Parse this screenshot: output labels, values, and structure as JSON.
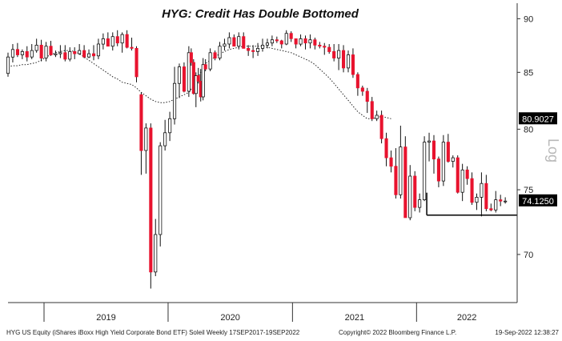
{
  "chart_data": {
    "type": "candlestick",
    "title": "HYG: Credit Has Double Bottomed",
    "scale": "log",
    "scale_label": "Log",
    "y_ticks": [
      70,
      75,
      80,
      85,
      90
    ],
    "ylim": [
      66.5,
      91.5
    ],
    "x_labels": [
      "2019",
      "2020",
      "2021",
      "2022"
    ],
    "x_range": [
      "2018-09-17",
      "2022-10-24"
    ],
    "year_dividers": [
      "2019-01-01",
      "2020-01-01",
      "2021-01-01",
      "2022-01-01"
    ],
    "last_price_label": "74.1250",
    "moving_average_label": "80.9027",
    "colors": {
      "up": "#ffffff",
      "down": "#e8132e",
      "wick": "#111111",
      "ma": "#222222"
    },
    "series": {
      "dates": [
        "2018-09-17",
        "2018-10-01",
        "2018-10-15",
        "2018-10-29",
        "2018-11-12",
        "2018-11-26",
        "2018-12-10",
        "2018-12-24",
        "2019-01-07",
        "2019-01-21",
        "2019-02-04",
        "2019-02-18",
        "2019-03-04",
        "2019-03-18",
        "2019-04-01",
        "2019-04-15",
        "2019-04-29",
        "2019-05-13",
        "2019-05-27",
        "2019-06-10",
        "2019-06-24",
        "2019-07-08",
        "2019-07-22",
        "2019-08-05",
        "2019-08-19",
        "2019-09-02",
        "2019-09-16",
        "2019-09-30",
        "2019-10-14",
        "2019-10-28",
        "2019-11-11",
        "2019-11-25",
        "2019-12-09",
        "2019-12-23",
        "2020-01-06",
        "2020-01-20",
        "2020-02-03",
        "2020-02-17",
        "2020-03-02",
        "2020-03-09",
        "2020-03-16",
        "2020-03-23",
        "2020-03-30",
        "2020-04-06",
        "2020-04-13",
        "2020-04-20",
        "2020-05-04",
        "2020-05-18",
        "2020-06-01",
        "2020-06-15",
        "2020-06-29",
        "2020-07-13",
        "2020-07-27",
        "2020-08-10",
        "2020-08-24",
        "2020-09-07",
        "2020-09-21",
        "2020-10-05",
        "2020-10-19",
        "2020-11-02",
        "2020-11-16",
        "2020-11-30",
        "2020-12-14",
        "2020-12-28",
        "2021-01-11",
        "2021-01-25",
        "2021-02-08",
        "2021-02-22",
        "2021-03-08",
        "2021-03-22",
        "2021-04-05",
        "2021-04-19",
        "2021-05-03",
        "2021-05-17",
        "2021-05-31",
        "2021-06-14",
        "2021-06-28",
        "2021-07-12",
        "2021-07-26",
        "2021-08-09",
        "2021-08-23",
        "2021-09-06",
        "2021-09-20",
        "2021-10-04",
        "2021-10-18",
        "2021-11-01",
        "2021-11-15",
        "2021-11-29",
        "2021-12-13",
        "2021-12-27",
        "2022-01-10",
        "2022-01-24",
        "2022-02-07",
        "2022-02-21",
        "2022-03-07",
        "2022-03-21",
        "2022-04-04",
        "2022-04-18",
        "2022-05-02",
        "2022-05-16",
        "2022-05-30",
        "2022-06-13",
        "2022-06-27",
        "2022-07-11",
        "2022-07-25",
        "2022-08-08",
        "2022-08-22",
        "2022-09-05",
        "2022-09-19"
      ],
      "open": [
        84.9,
        86.4,
        87.1,
        86.6,
        86.9,
        86.4,
        87.0,
        87.5,
        86.3,
        87.4,
        86.6,
        86.7,
        86.8,
        86.2,
        86.9,
        86.7,
        87.0,
        86.4,
        86.7,
        86.5,
        87.6,
        88.1,
        87.4,
        88.3,
        87.7,
        88.5,
        87.3,
        87.2,
        83.0,
        78.2,
        80.1,
        68.7,
        71.5,
        78.6,
        79.7,
        80.9,
        84.0,
        85.5,
        83.3,
        86.8,
        85.9,
        83.1,
        84.7,
        84.2,
        82.8,
        85.7,
        85.3,
        86.8,
        86.3,
        87.4,
        87.6,
        88.2,
        87.4,
        88.3,
        87.2,
        87.0,
        86.9,
        87.2,
        87.5,
        87.7,
        88.0,
        87.9,
        87.6,
        88.6,
        88.1,
        87.6,
        88.1,
        87.7,
        88.0,
        87.5,
        87.4,
        87.3,
        86.9,
        86.3,
        87.0,
        85.4,
        86.6,
        84.8,
        83.6,
        83.3,
        82.4,
        80.9,
        81.2,
        79.2,
        77.6,
        76.9,
        74.6,
        78.5,
        72.8,
        76.1,
        73.6,
        74.2,
        78.9,
        79.0,
        77.5,
        75.7,
        78.9,
        77.3,
        77.6,
        74.8,
        76.6,
        75.9,
        74.0,
        74.4,
        75.5,
        73.5,
        73.4,
        74.2,
        74.1
      ],
      "high": [
        86.8,
        87.6,
        87.7,
        87.1,
        87.4,
        87.6,
        88.1,
        88.0,
        87.8,
        87.9,
        87.0,
        87.5,
        87.5,
        87.3,
        87.3,
        87.6,
        87.5,
        87.1,
        87.5,
        88.1,
        88.6,
        88.7,
        88.7,
        88.9,
        88.7,
        88.9,
        88.2,
        87.4,
        83.2,
        80.5,
        80.5,
        72.7,
        78.9,
        80.8,
        81.5,
        85.5,
        85.8,
        85.9,
        87.4,
        87.2,
        86.2,
        85.0,
        85.4,
        85.3,
        86.3,
        86.2,
        87.2,
        87.0,
        87.8,
        88.1,
        88.7,
        88.5,
        88.7,
        88.7,
        87.5,
        87.5,
        87.7,
        88.1,
        88.1,
        88.4,
        88.3,
        88.0,
        88.9,
        88.8,
        88.1,
        88.5,
        88.4,
        88.5,
        88.2,
        87.8,
        87.7,
        87.6,
        87.6,
        87.6,
        87.5,
        87.0,
        87.2,
        85.0,
        83.8,
        83.6,
        82.8,
        81.6,
        81.6,
        79.7,
        78.2,
        78.4,
        80.3,
        79.4,
        77.0,
        76.5,
        74.7,
        79.4,
        79.7,
        79.5,
        77.7,
        79.5,
        79.6,
        77.8,
        77.8,
        77.1,
        76.9,
        76.4,
        74.7,
        76.4,
        76.2,
        73.9,
        74.9,
        74.6,
        74.4
      ],
      "low": [
        84.6,
        85.9,
        86.4,
        86.2,
        86.0,
        86.2,
        86.8,
        86.0,
        86.0,
        86.5,
        86.4,
        86.3,
        86.0,
        86.0,
        86.2,
        86.6,
        86.3,
        86.3,
        86.1,
        86.2,
        87.1,
        87.4,
        87.0,
        87.4,
        86.8,
        87.2,
        87.0,
        84.1,
        76.2,
        76.3,
        67.5,
        68.4,
        70.6,
        78.2,
        79.0,
        80.4,
        82.7,
        83.2,
        82.8,
        85.6,
        83.0,
        81.9,
        84.0,
        82.4,
        82.5,
        85.1,
        85.1,
        86.1,
        86.1,
        87.0,
        87.2,
        87.4,
        87.1,
        87.3,
        86.5,
        86.3,
        86.5,
        86.9,
        87.2,
        87.4,
        87.7,
        87.2,
        87.5,
        87.8,
        87.2,
        87.4,
        87.1,
        87.2,
        87.1,
        87.2,
        86.6,
        86.7,
        86.0,
        85.2,
        85.0,
        85.0,
        84.5,
        82.9,
        82.9,
        81.4,
        80.7,
        80.7,
        78.8,
        76.9,
        76.4,
        74.3,
        74.3,
        72.8,
        72.6,
        73.3,
        73.2,
        74.1,
        77.3,
        76.3,
        75.2,
        75.3,
        77.2,
        76.8,
        74.7,
        74.1,
        75.4,
        73.8,
        73.4,
        72.9,
        73.3,
        73.3,
        73.2,
        73.7,
        73.9
      ],
      "close": [
        86.4,
        87.1,
        86.6,
        86.9,
        86.4,
        87.0,
        87.5,
        86.3,
        87.4,
        86.6,
        86.7,
        86.8,
        86.2,
        86.9,
        86.7,
        87.0,
        86.4,
        86.7,
        86.5,
        87.6,
        88.1,
        87.4,
        88.3,
        87.7,
        88.5,
        87.3,
        87.2,
        84.6,
        78.2,
        80.1,
        68.7,
        71.5,
        78.6,
        79.7,
        80.9,
        84.0,
        85.5,
        83.3,
        86.8,
        85.9,
        83.1,
        84.7,
        84.2,
        82.8,
        85.7,
        85.3,
        86.8,
        86.3,
        87.4,
        87.6,
        88.2,
        87.4,
        88.3,
        87.2,
        87.0,
        86.9,
        87.2,
        87.5,
        87.7,
        88.0,
        87.9,
        87.6,
        88.6,
        88.1,
        87.6,
        88.1,
        87.7,
        88.0,
        87.5,
        87.4,
        87.3,
        86.9,
        86.3,
        87.0,
        85.4,
        86.6,
        84.8,
        83.6,
        83.3,
        82.4,
        80.9,
        81.2,
        79.2,
        77.6,
        76.9,
        74.6,
        78.5,
        72.8,
        76.1,
        73.6,
        74.2,
        78.9,
        79.0,
        77.5,
        75.7,
        78.9,
        77.3,
        77.6,
        74.8,
        76.6,
        75.9,
        74.0,
        74.4,
        75.5,
        73.5,
        73.4,
        74.2,
        74.1,
        74.1
      ],
      "ma": [
        85.5,
        85.6,
        85.6,
        85.7,
        85.7,
        85.8,
        85.9,
        86.1,
        86.4,
        86.6,
        86.8,
        86.9,
        87.0,
        87.0,
        86.9,
        86.7,
        86.4,
        86.1,
        85.8,
        85.5,
        85.2,
        84.9,
        84.6,
        84.4,
        84.1,
        84.0,
        83.9,
        83.6,
        83.2,
        82.9,
        82.6,
        82.4,
        82.3,
        82.3,
        82.4,
        82.6,
        82.8,
        83.0,
        83.2,
        83.5,
        83.8,
        84.2,
        84.6,
        85.0,
        85.4,
        85.8,
        86.1,
        86.4,
        86.7,
        86.9,
        87.1,
        87.2,
        87.3,
        87.4,
        87.4,
        87.4,
        87.4,
        87.4,
        87.3,
        87.2,
        87.1,
        87.0,
        86.9,
        86.8,
        86.6,
        86.4,
        86.2,
        86.0,
        85.7,
        85.3,
        84.9,
        84.5,
        84.0,
        83.5,
        83.0,
        82.5,
        82.0,
        81.5,
        81.2,
        80.9,
        80.9,
        81.0,
        81.1,
        81.0,
        80.9
      ]
    },
    "support_line": {
      "from": "2022-01-31",
      "to": "2022-09-30",
      "value": 73.0
    },
    "footer_left": "HYG US Equity (iShares iBoxx High Yield Corporate Bond ETF) Soleil  Weekly 17SEP2017-19SEP2022",
    "footer_mid": "Copyright© 2022 Bloomberg Finance L.P.",
    "footer_right": "19-Sep-2022 12:38:27"
  }
}
